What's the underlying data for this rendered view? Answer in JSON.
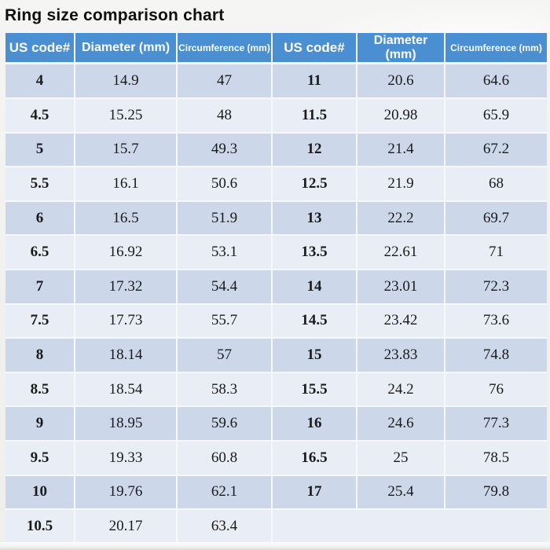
{
  "title": "Ring size comparison chart",
  "colors": {
    "header_bg": "#4a8fd1",
    "header_text": "#ffffff",
    "row_dark": "#ccd8ea",
    "row_light": "#e9edf6",
    "separator": "#f6f8fb",
    "page_bg": "#f0f0ef",
    "title_text": "#101010"
  },
  "table": {
    "headers": [
      "US code#",
      "Diameter (mm)",
      "Circumference (mm)",
      "US code#",
      "Diameter (mm)",
      "Circumference (mm)"
    ],
    "rows": [
      [
        "4",
        "14.9",
        "47",
        "11",
        "20.6",
        "64.6"
      ],
      [
        "4.5",
        "15.25",
        "48",
        "11.5",
        "20.98",
        "65.9"
      ],
      [
        "5",
        "15.7",
        "49.3",
        "12",
        "21.4",
        "67.2"
      ],
      [
        "5.5",
        "16.1",
        "50.6",
        "12.5",
        "21.9",
        "68"
      ],
      [
        "6",
        "16.5",
        "51.9",
        "13",
        "22.2",
        "69.7"
      ],
      [
        "6.5",
        "16.92",
        "53.1",
        "13.5",
        "22.61",
        "71"
      ],
      [
        "7",
        "17.32",
        "54.4",
        "14",
        "23.01",
        "72.3"
      ],
      [
        "7.5",
        "17.73",
        "55.7",
        "14.5",
        "23.42",
        "73.6"
      ],
      [
        "8",
        "18.14",
        "57",
        "15",
        "23.83",
        "74.8"
      ],
      [
        "8.5",
        "18.54",
        "58.3",
        "15.5",
        "24.2",
        "76"
      ],
      [
        "9",
        "18.95",
        "59.6",
        "16",
        "24.6",
        "77.3"
      ],
      [
        "9.5",
        "19.33",
        "60.8",
        "16.5",
        "25",
        "78.5"
      ],
      [
        "10",
        "19.76",
        "62.1",
        "17",
        "25.4",
        "79.8"
      ],
      [
        "10.5",
        "20.17",
        "63.4",
        "",
        "",
        ""
      ]
    ]
  },
  "chart_data": {
    "type": "table",
    "title": "Ring size comparison chart",
    "columns": [
      "US code#",
      "Diameter (mm)",
      "Circumference (mm)"
    ],
    "rows": [
      {
        "us_code": 4,
        "diameter_mm": 14.9,
        "circumference_mm": 47
      },
      {
        "us_code": 4.5,
        "diameter_mm": 15.25,
        "circumference_mm": 48
      },
      {
        "us_code": 5,
        "diameter_mm": 15.7,
        "circumference_mm": 49.3
      },
      {
        "us_code": 5.5,
        "diameter_mm": 16.1,
        "circumference_mm": 50.6
      },
      {
        "us_code": 6,
        "diameter_mm": 16.5,
        "circumference_mm": 51.9
      },
      {
        "us_code": 6.5,
        "diameter_mm": 16.92,
        "circumference_mm": 53.1
      },
      {
        "us_code": 7,
        "diameter_mm": 17.32,
        "circumference_mm": 54.4
      },
      {
        "us_code": 7.5,
        "diameter_mm": 17.73,
        "circumference_mm": 55.7
      },
      {
        "us_code": 8,
        "diameter_mm": 18.14,
        "circumference_mm": 57
      },
      {
        "us_code": 8.5,
        "diameter_mm": 18.54,
        "circumference_mm": 58.3
      },
      {
        "us_code": 9,
        "diameter_mm": 18.95,
        "circumference_mm": 59.6
      },
      {
        "us_code": 9.5,
        "diameter_mm": 19.33,
        "circumference_mm": 60.8
      },
      {
        "us_code": 10,
        "diameter_mm": 19.76,
        "circumference_mm": 62.1
      },
      {
        "us_code": 10.5,
        "diameter_mm": 20.17,
        "circumference_mm": 63.4
      },
      {
        "us_code": 11,
        "diameter_mm": 20.6,
        "circumference_mm": 64.6
      },
      {
        "us_code": 11.5,
        "diameter_mm": 20.98,
        "circumference_mm": 65.9
      },
      {
        "us_code": 12,
        "diameter_mm": 21.4,
        "circumference_mm": 67.2
      },
      {
        "us_code": 12.5,
        "diameter_mm": 21.9,
        "circumference_mm": 68
      },
      {
        "us_code": 13,
        "diameter_mm": 22.2,
        "circumference_mm": 69.7
      },
      {
        "us_code": 13.5,
        "diameter_mm": 22.61,
        "circumference_mm": 71
      },
      {
        "us_code": 14,
        "diameter_mm": 23.01,
        "circumference_mm": 72.3
      },
      {
        "us_code": 14.5,
        "diameter_mm": 23.42,
        "circumference_mm": 73.6
      },
      {
        "us_code": 15,
        "diameter_mm": 23.83,
        "circumference_mm": 74.8
      },
      {
        "us_code": 15.5,
        "diameter_mm": 24.2,
        "circumference_mm": 76
      },
      {
        "us_code": 16,
        "diameter_mm": 24.6,
        "circumference_mm": 77.3
      },
      {
        "us_code": 16.5,
        "diameter_mm": 25,
        "circumference_mm": 78.5
      },
      {
        "us_code": 17,
        "diameter_mm": 25.4,
        "circumference_mm": 79.8
      }
    ]
  }
}
